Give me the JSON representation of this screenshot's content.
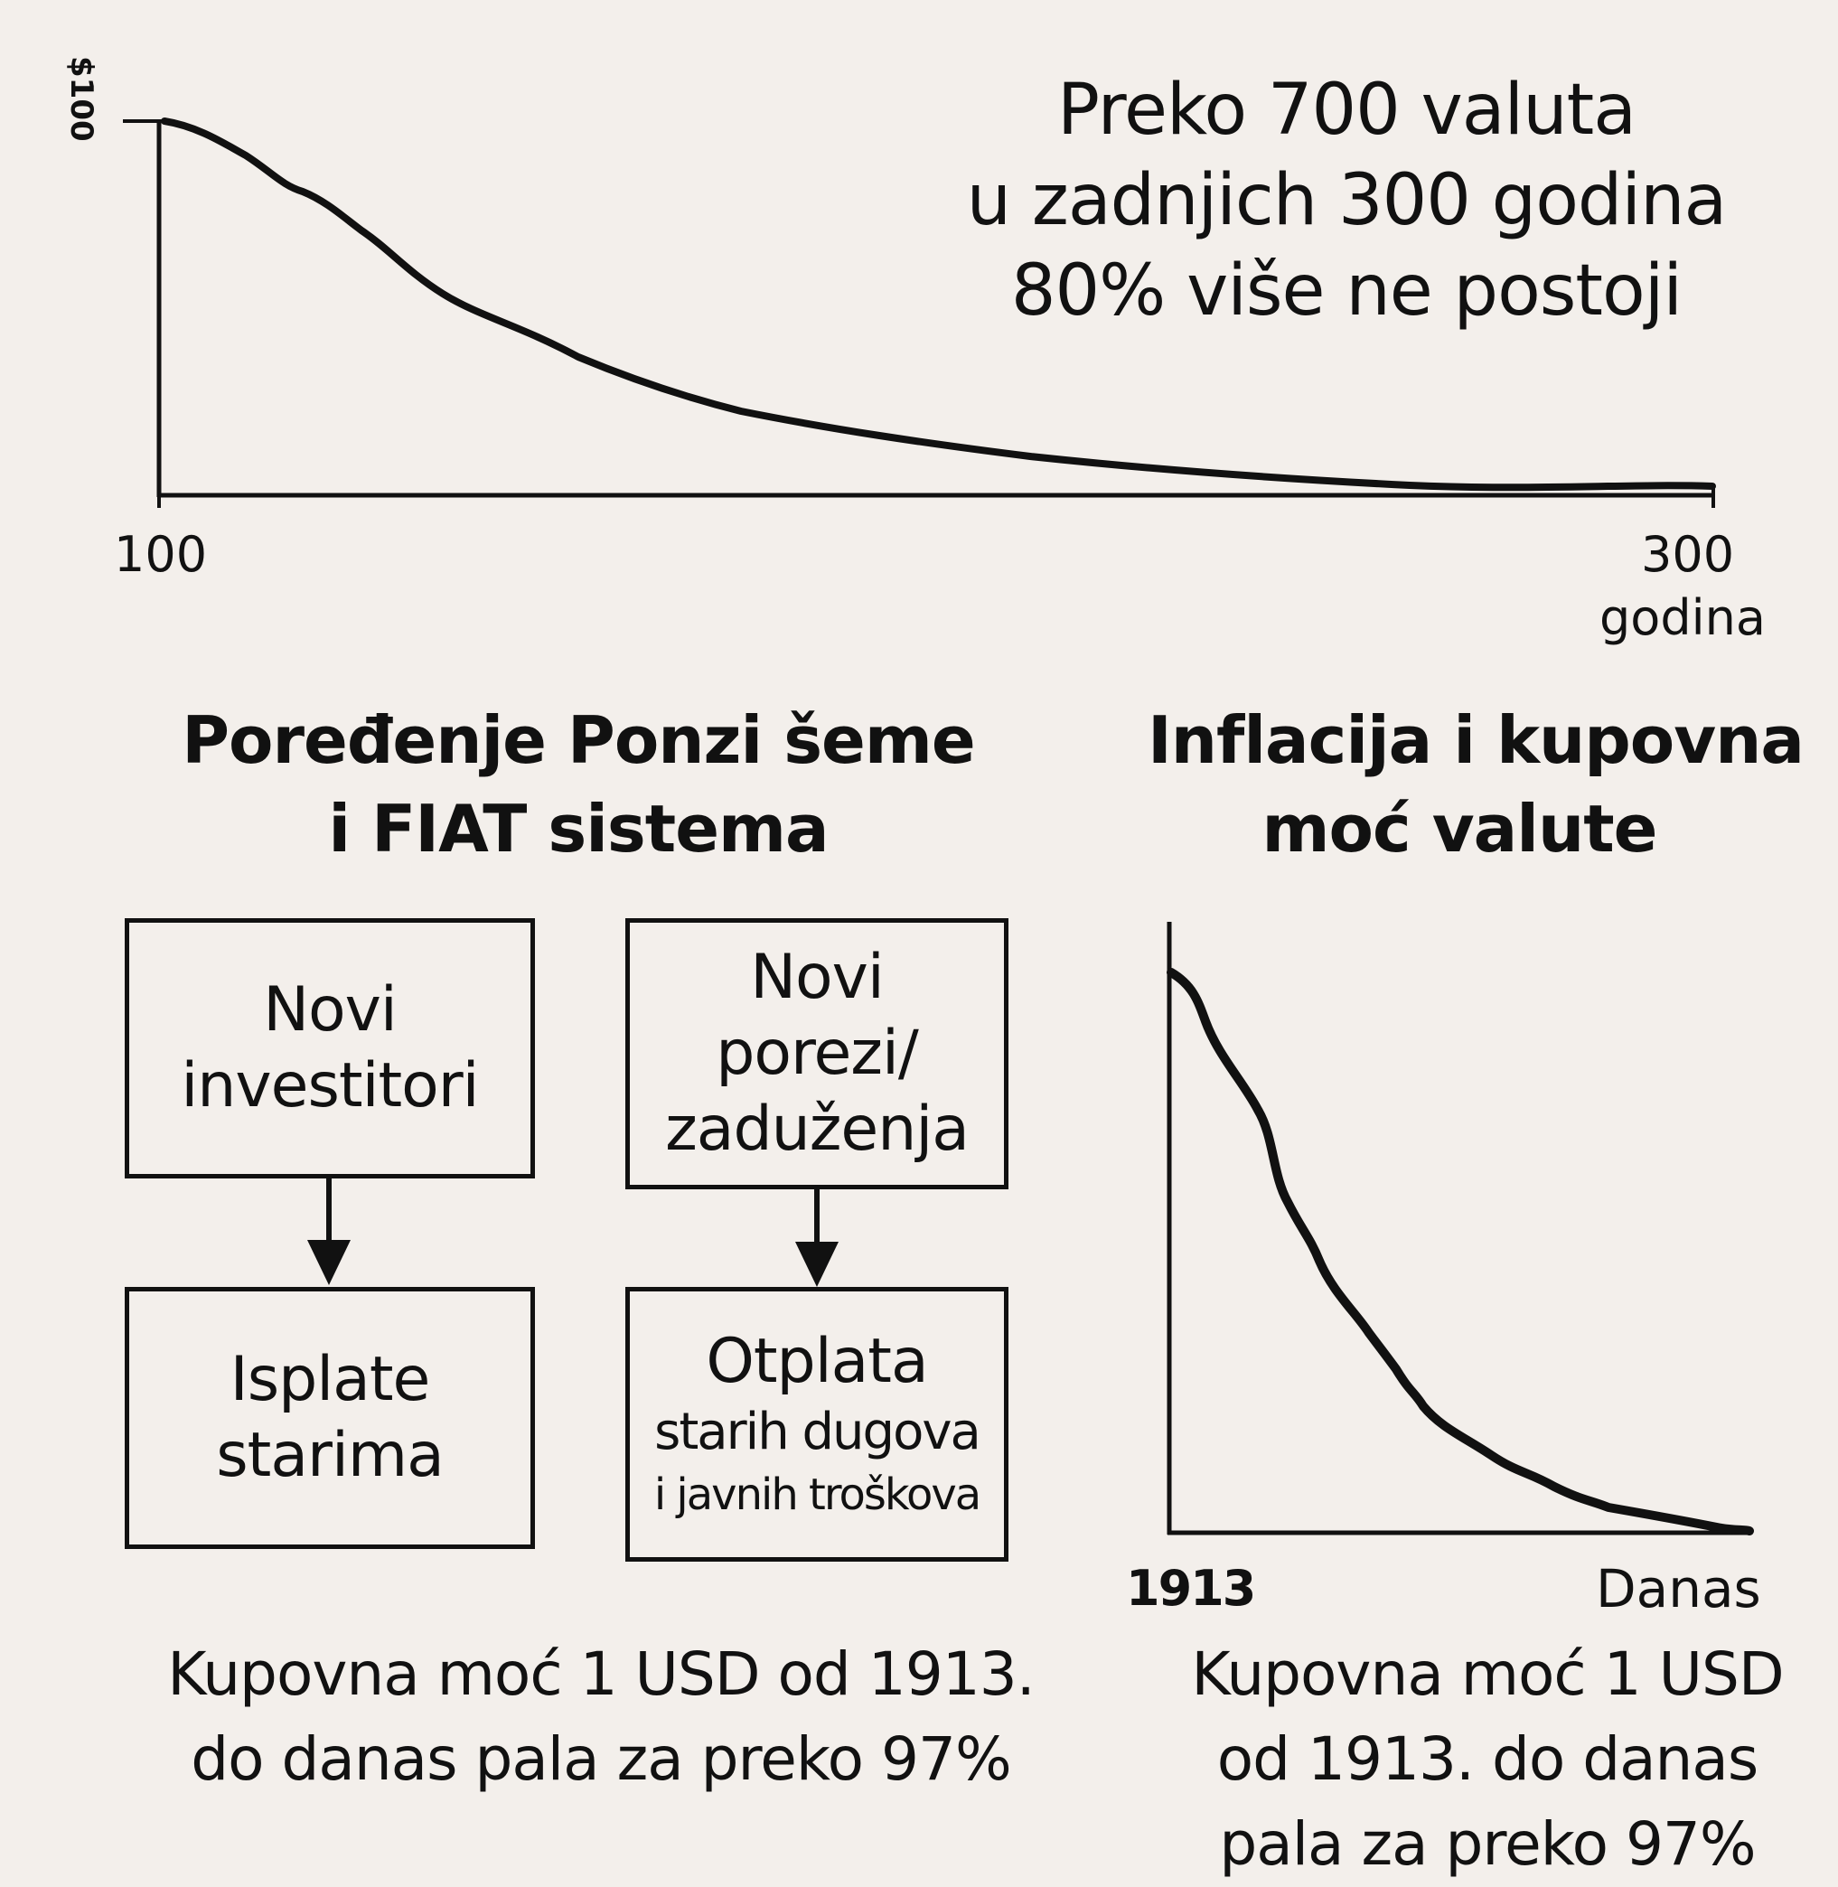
{
  "top_chart": {
    "y_max_label": "$100",
    "x_start_label": "100",
    "x_end_label": "300",
    "x_unit_label": "godina",
    "headline": [
      "Preko 700 valuta",
      "u zadnjich 300 godina",
      "80% više ne postoji"
    ]
  },
  "ponzi_section": {
    "title_line1": "Poređenje Ponzi šeme",
    "title_line2": "i FIAT sistema",
    "ponzi_top": [
      "Novi",
      "investitori"
    ],
    "ponzi_bottom": [
      "Isplate",
      "starima"
    ],
    "fiat_top": [
      "Novi",
      "porezi/",
      "zaduženja"
    ],
    "fiat_bottom": [
      "Otplata",
      "starih dugova",
      "i javnih troškova"
    ],
    "footer_line1": "Kupovna moć 1 USD od 1913.",
    "footer_line2": "do danas pala za preko 97%"
  },
  "inflation_section": {
    "title_line1": "Inflacija i kupovna",
    "title_line2": "moć valute",
    "x_start_label": "1913",
    "x_end_label": "Danas",
    "footer_line1": "Kupovna moć 1 USD",
    "footer_line2": "od 1913. do danas",
    "footer_line3": "pala za preko 97%"
  }
}
